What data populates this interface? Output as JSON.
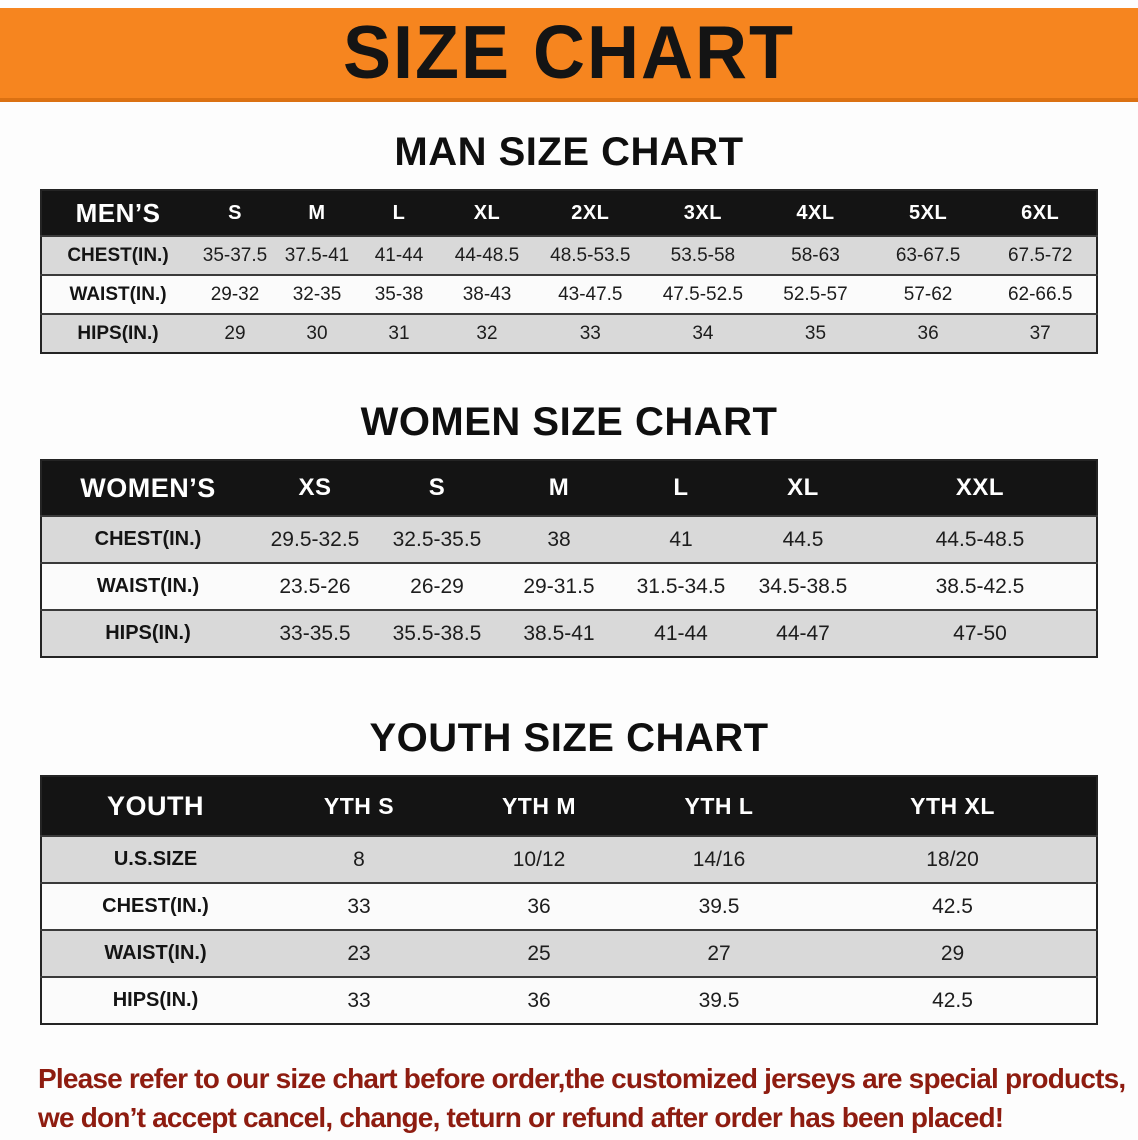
{
  "banner": {
    "title": "SIZE CHART"
  },
  "sections": [
    {
      "title": "MAN SIZE CHART",
      "table": {
        "header": [
          "MEN’S",
          "S",
          "M",
          "L",
          "XL",
          "2XL",
          "3XL",
          "4XL",
          "5XL",
          "6XL"
        ],
        "rows": [
          [
            "CHEST(IN.)",
            "35-37.5",
            "37.5-41",
            "41-44",
            "44-48.5",
            "48.5-53.5",
            "53.5-58",
            "58-63",
            "63-67.5",
            "67.5-72"
          ],
          [
            "WAIST(IN.)",
            "29-32",
            "32-35",
            "35-38",
            "38-43",
            "43-47.5",
            "47.5-52.5",
            "52.5-57",
            "57-62",
            "62-66.5"
          ],
          [
            "HIPS(IN.)",
            "29",
            "30",
            "31",
            "32",
            "33",
            "34",
            "35",
            "36",
            "37"
          ]
        ]
      }
    },
    {
      "title": "WOMEN SIZE CHART",
      "table": {
        "header": [
          "WOMEN’S",
          "XS",
          "S",
          "M",
          "L",
          "XL",
          "XXL"
        ],
        "rows": [
          [
            "CHEST(IN.)",
            "29.5-32.5",
            "32.5-35.5",
            "38",
            "41",
            "44.5",
            "44.5-48.5"
          ],
          [
            "WAIST(IN.)",
            "23.5-26",
            "26-29",
            "29-31.5",
            "31.5-34.5",
            "34.5-38.5",
            "38.5-42.5"
          ],
          [
            "HIPS(IN.)",
            "33-35.5",
            "35.5-38.5",
            "38.5-41",
            "41-44",
            "44-47",
            "47-50"
          ]
        ]
      }
    },
    {
      "title": "YOUTH SIZE CHART",
      "table": {
        "header": [
          "YOUTH",
          "YTH S",
          "YTH M",
          "YTH L",
          "YTH XL"
        ],
        "rows": [
          [
            "U.S.SIZE",
            "8",
            "10/12",
            "14/16",
            "18/20"
          ],
          [
            "CHEST(IN.)",
            "33",
            "36",
            "39.5",
            "42.5"
          ],
          [
            "WAIST(IN.)",
            "23",
            "25",
            "27",
            "29"
          ],
          [
            "HIPS(IN.)",
            "33",
            "36",
            "39.5",
            "42.5"
          ]
        ]
      }
    }
  ],
  "disclaimer": {
    "line1": "Please refer to our size chart before order,the customized jerseys are special products,",
    "line2": "we don’t accept cancel, change, teturn or refund after order has been placed!"
  },
  "colors": {
    "banner_bg": "#f6851f",
    "table_header_bg": "#141414",
    "row_alt_bg": "#d9d9d9",
    "disclaimer_text": "#8e1c10"
  }
}
